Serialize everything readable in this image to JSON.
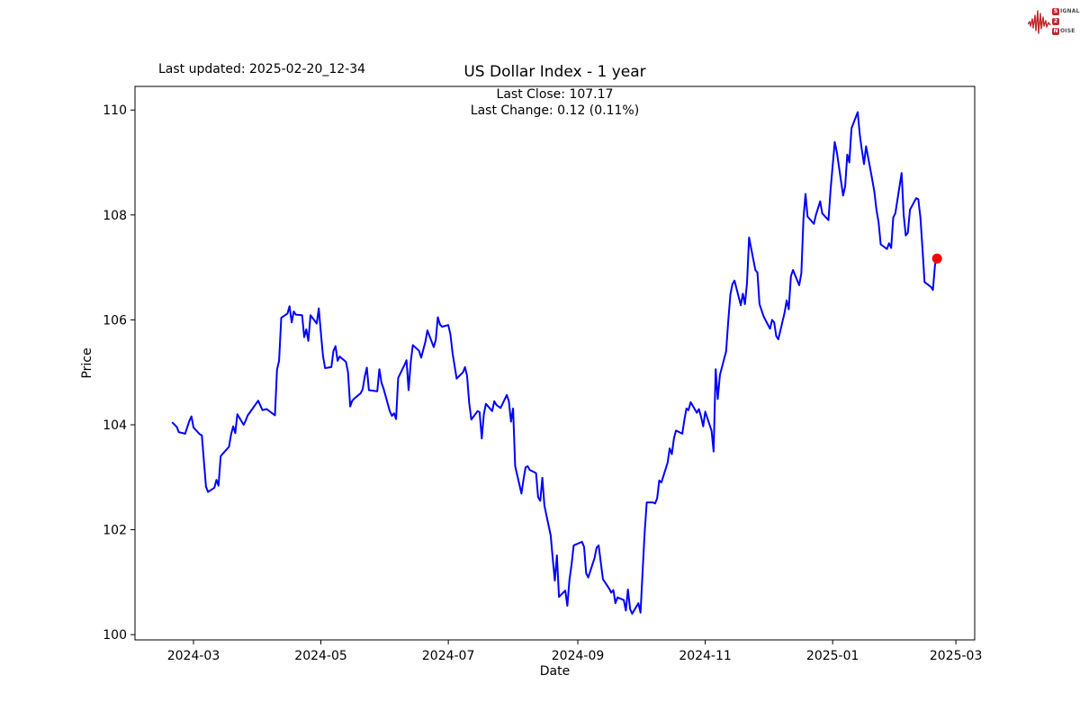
{
  "page": {
    "background": "#ffffff"
  },
  "header": {
    "last_updated": "Last updated: 2025-02-20_12-34",
    "title": "US Dollar Index - 1 year",
    "subtitle_line1": "Last Close: 107.17",
    "subtitle_line2": "Last Change: 0.12 (0.11%)"
  },
  "logo": {
    "accent_color": "#c1272d",
    "s_letter": "S",
    "s_rest": "IGNAL",
    "two_letter": "2",
    "n_letter": "N",
    "n_rest": "OISE"
  },
  "chart_data": {
    "type": "line",
    "title": "US Dollar Index - 1 year",
    "xlabel": "Date",
    "ylabel": "Price",
    "grid": false,
    "legend": "none",
    "line_color": "#0000ff",
    "marker_color": "#ff0000",
    "last_close": 107.17,
    "last_change": "0.12 (0.11%)",
    "ylim": [
      99.9,
      110.45
    ],
    "xlim": [
      "2024-02-02",
      "2025-03-10"
    ],
    "y_ticks": [
      100,
      102,
      104,
      106,
      108,
      110
    ],
    "x_ticks": [
      {
        "date": "2024-03-01",
        "label": "2024-03"
      },
      {
        "date": "2024-05-01",
        "label": "2024-05"
      },
      {
        "date": "2024-07-01",
        "label": "2024-07"
      },
      {
        "date": "2024-09-01",
        "label": "2024-09"
      },
      {
        "date": "2024-11-01",
        "label": "2024-11"
      },
      {
        "date": "2025-01-01",
        "label": "2025-01"
      },
      {
        "date": "2025-03-01",
        "label": "2025-03"
      }
    ],
    "series": [
      {
        "name": "US Dollar Index",
        "points": [
          [
            "2024-02-20",
            104.04
          ],
          [
            "2024-02-22",
            103.96
          ],
          [
            "2024-02-23",
            103.86
          ],
          [
            "2024-02-26",
            103.83
          ],
          [
            "2024-02-28",
            104.07
          ],
          [
            "2024-02-29",
            104.16
          ],
          [
            "2024-03-01",
            103.95
          ],
          [
            "2024-03-04",
            103.82
          ],
          [
            "2024-03-05",
            103.8
          ],
          [
            "2024-03-06",
            103.3
          ],
          [
            "2024-03-07",
            102.82
          ],
          [
            "2024-03-08",
            102.72
          ],
          [
            "2024-03-11",
            102.8
          ],
          [
            "2024-03-12",
            102.95
          ],
          [
            "2024-03-13",
            102.84
          ],
          [
            "2024-03-14",
            103.4
          ],
          [
            "2024-03-15",
            103.45
          ],
          [
            "2024-03-18",
            103.58
          ],
          [
            "2024-03-19",
            103.82
          ],
          [
            "2024-03-20",
            103.97
          ],
          [
            "2024-03-21",
            103.84
          ],
          [
            "2024-03-22",
            104.2
          ],
          [
            "2024-03-25",
            104.0
          ],
          [
            "2024-03-26",
            104.08
          ],
          [
            "2024-03-27",
            104.18
          ],
          [
            "2024-04-01",
            104.46
          ],
          [
            "2024-04-03",
            104.28
          ],
          [
            "2024-04-05",
            104.3
          ],
          [
            "2024-04-09",
            104.18
          ],
          [
            "2024-04-10",
            105.05
          ],
          [
            "2024-04-11",
            105.22
          ],
          [
            "2024-04-12",
            106.04
          ],
          [
            "2024-04-15",
            106.12
          ],
          [
            "2024-04-16",
            106.26
          ],
          [
            "2024-04-17",
            105.95
          ],
          [
            "2024-04-18",
            106.16
          ],
          [
            "2024-04-19",
            106.1
          ],
          [
            "2024-04-22",
            106.09
          ],
          [
            "2024-04-23",
            105.67
          ],
          [
            "2024-04-24",
            105.82
          ],
          [
            "2024-04-25",
            105.6
          ],
          [
            "2024-04-26",
            106.09
          ],
          [
            "2024-04-29",
            105.93
          ],
          [
            "2024-04-30",
            106.22
          ],
          [
            "2024-05-01",
            105.74
          ],
          [
            "2024-05-02",
            105.31
          ],
          [
            "2024-05-03",
            105.08
          ],
          [
            "2024-05-06",
            105.1
          ],
          [
            "2024-05-07",
            105.41
          ],
          [
            "2024-05-08",
            105.5
          ],
          [
            "2024-05-09",
            105.22
          ],
          [
            "2024-05-10",
            105.3
          ],
          [
            "2024-05-13",
            105.2
          ],
          [
            "2024-05-14",
            105.0
          ],
          [
            "2024-05-15",
            104.35
          ],
          [
            "2024-05-16",
            104.46
          ],
          [
            "2024-05-17",
            104.5
          ],
          [
            "2024-05-20",
            104.6
          ],
          [
            "2024-05-21",
            104.68
          ],
          [
            "2024-05-22",
            104.92
          ],
          [
            "2024-05-23",
            105.09
          ],
          [
            "2024-05-24",
            104.66
          ],
          [
            "2024-05-28",
            104.64
          ],
          [
            "2024-05-29",
            105.06
          ],
          [
            "2024-05-30",
            104.8
          ],
          [
            "2024-05-31",
            104.69
          ],
          [
            "2024-06-03",
            104.26
          ],
          [
            "2024-06-04",
            104.17
          ],
          [
            "2024-06-05",
            104.22
          ],
          [
            "2024-06-06",
            104.11
          ],
          [
            "2024-06-07",
            104.89
          ],
          [
            "2024-06-10",
            105.14
          ],
          [
            "2024-06-11",
            105.23
          ],
          [
            "2024-06-12",
            104.66
          ],
          [
            "2024-06-13",
            105.2
          ],
          [
            "2024-06-14",
            105.52
          ],
          [
            "2024-06-17",
            105.41
          ],
          [
            "2024-06-18",
            105.28
          ],
          [
            "2024-06-20",
            105.58
          ],
          [
            "2024-06-21",
            105.8
          ],
          [
            "2024-06-24",
            105.48
          ],
          [
            "2024-06-25",
            105.62
          ],
          [
            "2024-06-26",
            106.05
          ],
          [
            "2024-06-27",
            105.91
          ],
          [
            "2024-06-28",
            105.87
          ],
          [
            "2024-07-01",
            105.9
          ],
          [
            "2024-07-02",
            105.72
          ],
          [
            "2024-07-03",
            105.37
          ],
          [
            "2024-07-05",
            104.88
          ],
          [
            "2024-07-08",
            105.0
          ],
          [
            "2024-07-09",
            105.1
          ],
          [
            "2024-07-10",
            104.93
          ],
          [
            "2024-07-11",
            104.42
          ],
          [
            "2024-07-12",
            104.1
          ],
          [
            "2024-07-15",
            104.26
          ],
          [
            "2024-07-16",
            104.24
          ],
          [
            "2024-07-17",
            103.74
          ],
          [
            "2024-07-18",
            104.2
          ],
          [
            "2024-07-19",
            104.4
          ],
          [
            "2024-07-22",
            104.26
          ],
          [
            "2024-07-23",
            104.45
          ],
          [
            "2024-07-24",
            104.38
          ],
          [
            "2024-07-25",
            104.35
          ],
          [
            "2024-07-26",
            104.32
          ],
          [
            "2024-07-29",
            104.57
          ],
          [
            "2024-07-30",
            104.45
          ],
          [
            "2024-07-31",
            104.06
          ],
          [
            "2024-08-01",
            104.31
          ],
          [
            "2024-08-02",
            103.21
          ],
          [
            "2024-08-05",
            102.69
          ],
          [
            "2024-08-06",
            102.96
          ],
          [
            "2024-08-07",
            103.19
          ],
          [
            "2024-08-08",
            103.21
          ],
          [
            "2024-08-09",
            103.14
          ],
          [
            "2024-08-12",
            103.08
          ],
          [
            "2024-08-13",
            102.62
          ],
          [
            "2024-08-14",
            102.55
          ],
          [
            "2024-08-15",
            102.99
          ],
          [
            "2024-08-16",
            102.46
          ],
          [
            "2024-08-19",
            101.89
          ],
          [
            "2024-08-20",
            101.44
          ],
          [
            "2024-08-21",
            101.03
          ],
          [
            "2024-08-22",
            101.51
          ],
          [
            "2024-08-23",
            100.72
          ],
          [
            "2024-08-26",
            100.84
          ],
          [
            "2024-08-27",
            100.55
          ],
          [
            "2024-08-28",
            101.04
          ],
          [
            "2024-08-29",
            101.34
          ],
          [
            "2024-08-30",
            101.7
          ],
          [
            "2024-09-03",
            101.77
          ],
          [
            "2024-09-04",
            101.67
          ],
          [
            "2024-09-05",
            101.17
          ],
          [
            "2024-09-06",
            101.09
          ],
          [
            "2024-09-09",
            101.46
          ],
          [
            "2024-09-10",
            101.66
          ],
          [
            "2024-09-11",
            101.7
          ],
          [
            "2024-09-12",
            101.37
          ],
          [
            "2024-09-13",
            101.06
          ],
          [
            "2024-09-16",
            100.88
          ],
          [
            "2024-09-17",
            100.8
          ],
          [
            "2024-09-18",
            100.85
          ],
          [
            "2024-09-19",
            100.6
          ],
          [
            "2024-09-20",
            100.71
          ],
          [
            "2024-09-23",
            100.66
          ],
          [
            "2024-09-24",
            100.46
          ],
          [
            "2024-09-25",
            100.86
          ],
          [
            "2024-09-26",
            100.49
          ],
          [
            "2024-09-27",
            100.4
          ],
          [
            "2024-09-30",
            100.6
          ],
          [
            "2024-10-01",
            100.42
          ],
          [
            "2024-10-02",
            101.2
          ],
          [
            "2024-10-03",
            101.95
          ],
          [
            "2024-10-04",
            102.52
          ],
          [
            "2024-10-07",
            102.52
          ],
          [
            "2024-10-08",
            102.5
          ],
          [
            "2024-10-09",
            102.6
          ],
          [
            "2024-10-10",
            102.94
          ],
          [
            "2024-10-11",
            102.9
          ],
          [
            "2024-10-14",
            103.28
          ],
          [
            "2024-10-15",
            103.55
          ],
          [
            "2024-10-16",
            103.44
          ],
          [
            "2024-10-17",
            103.74
          ],
          [
            "2024-10-18",
            103.89
          ],
          [
            "2024-10-21",
            103.83
          ],
          [
            "2024-10-22",
            104.09
          ],
          [
            "2024-10-23",
            104.31
          ],
          [
            "2024-10-24",
            104.28
          ],
          [
            "2024-10-25",
            104.43
          ],
          [
            "2024-10-28",
            104.23
          ],
          [
            "2024-10-29",
            104.3
          ],
          [
            "2024-10-30",
            104.15
          ],
          [
            "2024-10-31",
            103.97
          ],
          [
            "2024-11-01",
            104.25
          ],
          [
            "2024-11-04",
            103.89
          ],
          [
            "2024-11-05",
            103.49
          ],
          [
            "2024-11-06",
            105.06
          ],
          [
            "2024-11-07",
            104.49
          ],
          [
            "2024-11-08",
            104.95
          ],
          [
            "2024-11-11",
            105.4
          ],
          [
            "2024-11-12",
            105.96
          ],
          [
            "2024-11-13",
            106.48
          ],
          [
            "2024-11-14",
            106.68
          ],
          [
            "2024-11-15",
            106.75
          ],
          [
            "2024-11-18",
            106.28
          ],
          [
            "2024-11-19",
            106.5
          ],
          [
            "2024-11-20",
            106.3
          ],
          [
            "2024-11-21",
            106.7
          ],
          [
            "2024-11-22",
            107.57
          ],
          [
            "2024-11-25",
            106.95
          ],
          [
            "2024-11-26",
            106.9
          ],
          [
            "2024-11-27",
            106.3
          ],
          [
            "2024-11-29",
            106.06
          ],
          [
            "2024-12-02",
            105.83
          ],
          [
            "2024-12-03",
            106.0
          ],
          [
            "2024-12-04",
            105.95
          ],
          [
            "2024-12-05",
            105.69
          ],
          [
            "2024-12-06",
            105.63
          ],
          [
            "2024-12-09",
            106.14
          ],
          [
            "2024-12-10",
            106.37
          ],
          [
            "2024-12-11",
            106.2
          ],
          [
            "2024-12-12",
            106.83
          ],
          [
            "2024-12-13",
            106.95
          ],
          [
            "2024-12-16",
            106.66
          ],
          [
            "2024-12-17",
            106.89
          ],
          [
            "2024-12-18",
            107.92
          ],
          [
            "2024-12-19",
            108.4
          ],
          [
            "2024-12-20",
            107.97
          ],
          [
            "2024-12-23",
            107.83
          ],
          [
            "2024-12-24",
            108.0
          ],
          [
            "2024-12-26",
            108.26
          ],
          [
            "2024-12-27",
            108.03
          ],
          [
            "2024-12-30",
            107.9
          ],
          [
            "2024-12-31",
            108.49
          ],
          [
            "2025-01-02",
            109.39
          ],
          [
            "2025-01-03",
            109.2
          ],
          [
            "2025-01-06",
            108.37
          ],
          [
            "2025-01-07",
            108.55
          ],
          [
            "2025-01-08",
            109.15
          ],
          [
            "2025-01-09",
            109.0
          ],
          [
            "2025-01-10",
            109.65
          ],
          [
            "2025-01-13",
            109.96
          ],
          [
            "2025-01-14",
            109.52
          ],
          [
            "2025-01-15",
            109.23
          ],
          [
            "2025-01-16",
            108.97
          ],
          [
            "2025-01-17",
            109.31
          ],
          [
            "2025-01-20",
            108.66
          ],
          [
            "2025-01-21",
            108.43
          ],
          [
            "2025-01-22",
            108.09
          ],
          [
            "2025-01-23",
            107.86
          ],
          [
            "2025-01-24",
            107.44
          ],
          [
            "2025-01-27",
            107.35
          ],
          [
            "2025-01-28",
            107.46
          ],
          [
            "2025-01-29",
            107.37
          ],
          [
            "2025-01-30",
            107.95
          ],
          [
            "2025-01-31",
            108.03
          ],
          [
            "2025-02-03",
            108.8
          ],
          [
            "2025-02-04",
            108.0
          ],
          [
            "2025-02-05",
            107.61
          ],
          [
            "2025-02-06",
            107.66
          ],
          [
            "2025-02-07",
            108.1
          ],
          [
            "2025-02-10",
            108.32
          ],
          [
            "2025-02-11",
            108.3
          ],
          [
            "2025-02-12",
            107.95
          ],
          [
            "2025-02-13",
            107.35
          ],
          [
            "2025-02-14",
            106.72
          ],
          [
            "2025-02-17",
            106.63
          ],
          [
            "2025-02-18",
            106.57
          ],
          [
            "2025-02-19",
            107.05
          ],
          [
            "2025-02-20",
            107.17
          ]
        ]
      }
    ]
  }
}
